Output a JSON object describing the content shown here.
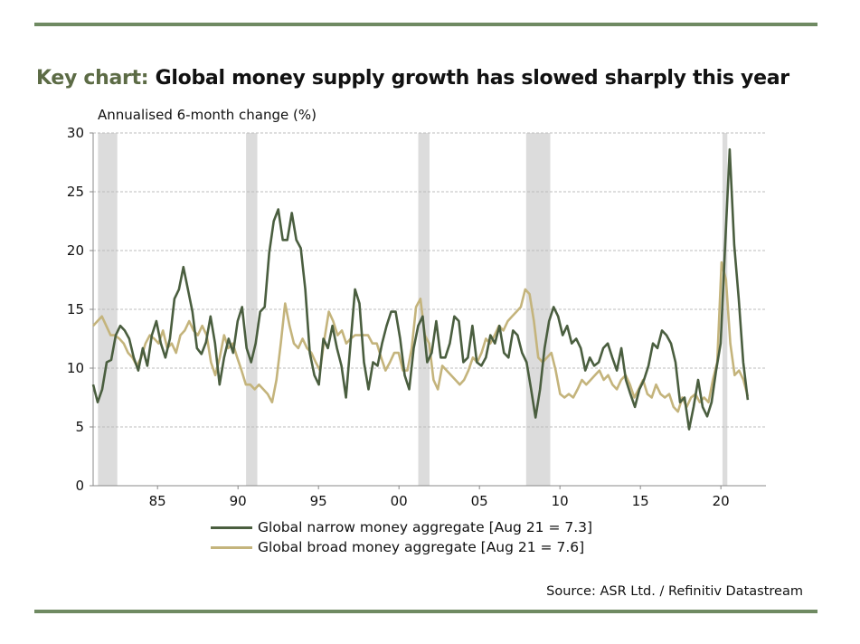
{
  "title": {
    "prefix": "Key chart:",
    "main": "Global money supply growth has slowed sharply this year"
  },
  "source": "Source: ASR Ltd. / Refinitiv Datastream",
  "colors": {
    "narrow": "#4a5e3f",
    "broad": "#c4b47c",
    "band": "#dcdcdc",
    "rule": "#6f8a62"
  },
  "chart_data": {
    "type": "line",
    "title": "Global money supply growth has slowed sharply this year",
    "ylabel": "Annualised 6-month change (%)",
    "xlabel": "",
    "xlim": [
      1981.0,
      2022.8
    ],
    "ylim": [
      0,
      30
    ],
    "yticks": [
      0,
      5,
      10,
      15,
      20,
      25,
      30
    ],
    "xticks": [
      {
        "value": 1985,
        "label": "85"
      },
      {
        "value": 1990,
        "label": "90"
      },
      {
        "value": 1995,
        "label": "95"
      },
      {
        "value": 2000,
        "label": "00"
      },
      {
        "value": 2005,
        "label": "05"
      },
      {
        "value": 2010,
        "label": "10"
      },
      {
        "value": 2015,
        "label": "15"
      },
      {
        "value": 2020,
        "label": "20"
      }
    ],
    "grid": true,
    "recession_bands": [
      [
        1981.3,
        1982.5
      ],
      [
        1990.5,
        1991.2
      ],
      [
        2001.2,
        2001.9
      ],
      [
        2007.9,
        2009.4
      ],
      [
        2020.1,
        2020.4
      ]
    ],
    "series": [
      {
        "name": "Global narrow money aggregate [Aug 21 = 7.3]",
        "start": 1981.0,
        "end": 2021.67,
        "values": [
          8.6,
          7.1,
          8.2,
          10.5,
          10.7,
          12.8,
          13.6,
          13.2,
          12.5,
          10.9,
          9.8,
          11.7,
          10.2,
          12.8,
          14.0,
          12.1,
          10.9,
          12.5,
          15.9,
          16.7,
          18.6,
          16.7,
          14.8,
          11.7,
          11.2,
          12.2,
          14.4,
          12.1,
          8.6,
          10.9,
          12.5,
          11.3,
          14.0,
          15.2,
          11.7,
          10.5,
          12.1,
          14.8,
          15.2,
          19.8,
          22.5,
          23.5,
          20.9,
          20.9,
          23.2,
          20.9,
          20.2,
          16.7,
          11.3,
          9.4,
          8.6,
          12.5,
          11.7,
          13.6,
          11.7,
          10.2,
          7.5,
          12.1,
          16.7,
          15.5,
          10.5,
          8.2,
          10.5,
          10.2,
          12.1,
          13.6,
          14.8,
          14.8,
          12.5,
          9.4,
          8.2,
          11.7,
          13.6,
          14.4,
          10.5,
          11.3,
          14.0,
          10.9,
          10.9,
          12.1,
          14.4,
          14.0,
          10.5,
          10.9,
          13.6,
          10.5,
          10.2,
          10.9,
          12.8,
          12.1,
          13.6,
          11.3,
          10.9,
          13.2,
          12.8,
          11.3,
          10.5,
          8.2,
          5.8,
          8.2,
          11.7,
          14.0,
          15.2,
          14.4,
          12.8,
          13.6,
          12.1,
          12.5,
          11.7,
          9.8,
          10.9,
          10.2,
          10.5,
          11.7,
          12.1,
          10.9,
          9.8,
          11.7,
          9.0,
          7.8,
          6.7,
          8.2,
          9.0,
          10.2,
          12.1,
          11.7,
          13.2,
          12.8,
          12.1,
          10.5,
          7.1,
          7.5,
          4.8,
          6.7,
          9.0,
          6.7,
          5.9,
          7.1,
          9.8,
          12.1,
          20.5,
          28.6,
          20.5,
          15.9,
          10.5,
          7.3
        ]
      },
      {
        "name": "Global broad money aggregate [Aug 21 = 7.6]",
        "start": 1981.0,
        "end": 2021.67,
        "values": [
          13.6,
          14.0,
          14.4,
          13.6,
          12.8,
          12.8,
          12.5,
          12.1,
          11.3,
          10.9,
          10.2,
          10.9,
          12.1,
          12.8,
          12.5,
          12.1,
          13.2,
          11.7,
          12.1,
          11.3,
          12.8,
          13.2,
          14.0,
          13.2,
          12.8,
          13.6,
          12.8,
          10.5,
          9.4,
          10.9,
          12.8,
          11.7,
          12.1,
          10.9,
          9.8,
          8.6,
          8.6,
          8.2,
          8.6,
          8.2,
          7.8,
          7.1,
          9.0,
          12.1,
          15.5,
          13.6,
          12.1,
          11.7,
          12.5,
          11.7,
          11.3,
          10.5,
          9.8,
          12.5,
          14.8,
          14.0,
          12.8,
          13.2,
          12.1,
          12.5,
          12.8,
          12.8,
          12.8,
          12.8,
          12.1,
          12.1,
          10.9,
          9.8,
          10.5,
          11.3,
          11.3,
          9.8,
          9.8,
          11.7,
          15.2,
          15.9,
          12.8,
          12.1,
          9.0,
          8.2,
          10.2,
          9.8,
          9.4,
          9.0,
          8.6,
          9.0,
          9.8,
          10.9,
          10.5,
          11.3,
          12.5,
          12.1,
          12.8,
          13.6,
          13.2,
          14.0,
          14.4,
          14.8,
          15.2,
          16.7,
          16.3,
          14.0,
          10.9,
          10.5,
          10.9,
          11.3,
          9.8,
          7.8,
          7.5,
          7.8,
          7.5,
          8.2,
          9.0,
          8.6,
          9.0,
          9.4,
          9.8,
          9.0,
          9.4,
          8.6,
          8.2,
          9.0,
          9.4,
          8.6,
          7.5,
          8.2,
          9.0,
          7.8,
          7.5,
          8.6,
          7.8,
          7.5,
          7.8,
          6.7,
          6.3,
          7.5,
          6.7,
          7.5,
          7.8,
          7.1,
          7.5,
          7.1,
          9.0,
          10.5,
          19.0,
          17.5,
          12.1,
          9.4,
          9.8,
          9.0,
          7.6
        ]
      }
    ],
    "legend": "bottom-center"
  }
}
